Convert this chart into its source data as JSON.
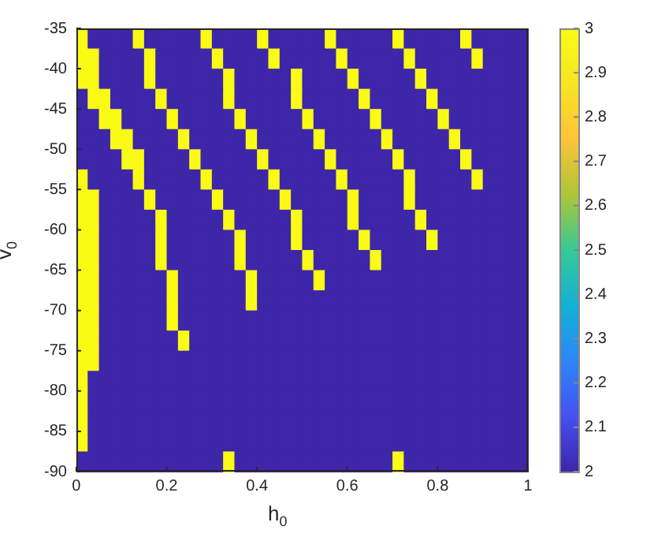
{
  "chart_data": {
    "type": "heatmap",
    "xlabel": "h$_{0}$",
    "ylabel": "v$_{0}$",
    "xlim": [
      0,
      1
    ],
    "xticks": [
      0,
      0.2,
      0.4,
      0.6,
      0.8,
      1
    ],
    "ylim": [
      -90,
      -35
    ],
    "yticks": [
      -90,
      -85,
      -80,
      -75,
      -70,
      -65,
      -60,
      -55,
      -50,
      -45,
      -40,
      -35
    ],
    "clim": [
      2,
      3
    ],
    "cticks": [
      2,
      2.1,
      2.2,
      2.3,
      2.4,
      2.5,
      2.6,
      2.7,
      2.8,
      2.9,
      3
    ],
    "cells": [
      [
        3,
        2,
        2,
        2,
        2,
        3,
        2,
        2,
        2,
        2,
        2,
        3,
        2,
        2,
        2,
        2,
        3,
        2,
        2,
        2,
        2,
        2,
        3,
        2,
        2,
        2,
        2,
        2,
        3,
        2,
        2,
        2,
        2,
        2,
        3,
        2,
        2,
        2,
        2,
        2
      ],
      [
        3,
        3,
        2,
        2,
        2,
        2,
        3,
        2,
        2,
        2,
        2,
        2,
        3,
        2,
        2,
        2,
        2,
        3,
        2,
        2,
        2,
        2,
        2,
        3,
        2,
        2,
        2,
        2,
        2,
        3,
        2,
        2,
        2,
        2,
        2,
        3,
        2,
        2,
        2,
        2
      ],
      [
        3,
        3,
        2,
        2,
        2,
        2,
        3,
        2,
        2,
        2,
        2,
        2,
        2,
        3,
        2,
        2,
        2,
        2,
        2,
        3,
        2,
        2,
        2,
        2,
        3,
        2,
        2,
        2,
        2,
        2,
        3,
        2,
        2,
        2,
        2,
        2,
        2,
        2,
        2,
        2
      ],
      [
        2,
        3,
        3,
        2,
        2,
        2,
        2,
        3,
        2,
        2,
        2,
        2,
        2,
        3,
        2,
        2,
        2,
        2,
        2,
        3,
        2,
        2,
        2,
        2,
        2,
        3,
        2,
        2,
        2,
        2,
        2,
        3,
        2,
        2,
        2,
        2,
        2,
        2,
        2,
        2
      ],
      [
        2,
        2,
        3,
        3,
        2,
        2,
        2,
        2,
        3,
        2,
        2,
        2,
        2,
        2,
        3,
        2,
        2,
        2,
        2,
        2,
        3,
        2,
        2,
        2,
        2,
        2,
        3,
        2,
        2,
        2,
        2,
        2,
        3,
        2,
        2,
        2,
        2,
        2,
        2,
        2
      ],
      [
        2,
        2,
        2,
        3,
        3,
        2,
        2,
        2,
        2,
        3,
        2,
        2,
        2,
        2,
        2,
        3,
        2,
        2,
        2,
        2,
        2,
        3,
        2,
        2,
        2,
        2,
        2,
        3,
        2,
        2,
        2,
        2,
        2,
        3,
        2,
        2,
        2,
        2,
        2,
        2
      ],
      [
        2,
        2,
        2,
        2,
        3,
        3,
        2,
        2,
        2,
        2,
        3,
        2,
        2,
        2,
        2,
        2,
        3,
        2,
        2,
        2,
        2,
        2,
        3,
        2,
        2,
        2,
        2,
        2,
        3,
        2,
        2,
        2,
        2,
        2,
        3,
        2,
        2,
        2,
        2,
        2
      ],
      [
        3,
        2,
        2,
        2,
        2,
        3,
        2,
        2,
        2,
        2,
        2,
        3,
        2,
        2,
        2,
        2,
        2,
        3,
        2,
        2,
        2,
        2,
        2,
        3,
        2,
        2,
        2,
        2,
        2,
        3,
        2,
        2,
        2,
        2,
        2,
        3,
        2,
        2,
        2,
        2
      ],
      [
        3,
        3,
        2,
        2,
        2,
        2,
        3,
        2,
        2,
        2,
        2,
        2,
        3,
        2,
        2,
        2,
        2,
        2,
        3,
        2,
        2,
        2,
        2,
        2,
        3,
        2,
        2,
        2,
        2,
        3,
        2,
        2,
        2,
        2,
        2,
        2,
        2,
        2,
        2,
        2
      ],
      [
        3,
        3,
        2,
        2,
        2,
        2,
        2,
        3,
        2,
        2,
        2,
        2,
        2,
        3,
        2,
        2,
        2,
        2,
        2,
        3,
        2,
        2,
        2,
        2,
        3,
        2,
        2,
        2,
        2,
        2,
        3,
        2,
        2,
        2,
        2,
        2,
        2,
        2,
        2,
        2
      ],
      [
        3,
        3,
        2,
        2,
        2,
        2,
        2,
        3,
        2,
        2,
        2,
        2,
        2,
        2,
        3,
        2,
        2,
        2,
        2,
        3,
        2,
        2,
        2,
        2,
        2,
        3,
        2,
        2,
        2,
        2,
        2,
        3,
        2,
        2,
        2,
        2,
        2,
        2,
        2,
        2
      ],
      [
        3,
        3,
        2,
        2,
        2,
        2,
        2,
        3,
        2,
        2,
        2,
        2,
        2,
        2,
        3,
        2,
        2,
        2,
        2,
        2,
        3,
        2,
        2,
        2,
        2,
        2,
        3,
        2,
        2,
        2,
        2,
        2,
        2,
        2,
        2,
        2,
        2,
        2,
        2,
        2
      ],
      [
        3,
        3,
        2,
        2,
        2,
        2,
        2,
        2,
        3,
        2,
        2,
        2,
        2,
        2,
        2,
        3,
        2,
        2,
        2,
        2,
        2,
        3,
        2,
        2,
        2,
        2,
        2,
        2,
        2,
        2,
        2,
        2,
        2,
        2,
        2,
        2,
        2,
        2,
        2,
        2
      ],
      [
        3,
        3,
        2,
        2,
        2,
        2,
        2,
        2,
        3,
        2,
        2,
        2,
        2,
        2,
        2,
        3,
        2,
        2,
        2,
        2,
        2,
        2,
        2,
        2,
        2,
        2,
        2,
        2,
        2,
        2,
        2,
        2,
        2,
        2,
        2,
        2,
        2,
        2,
        2,
        2
      ],
      [
        3,
        3,
        2,
        2,
        2,
        2,
        2,
        2,
        3,
        2,
        2,
        2,
        2,
        2,
        2,
        2,
        2,
        2,
        2,
        2,
        2,
        2,
        2,
        2,
        2,
        2,
        2,
        2,
        2,
        2,
        2,
        2,
        2,
        2,
        2,
        2,
        2,
        2,
        2,
        2
      ],
      [
        3,
        3,
        2,
        2,
        2,
        2,
        2,
        2,
        2,
        3,
        2,
        2,
        2,
        2,
        2,
        2,
        2,
        2,
        2,
        2,
        2,
        2,
        2,
        2,
        2,
        2,
        2,
        2,
        2,
        2,
        2,
        2,
        2,
        2,
        2,
        2,
        2,
        2,
        2,
        2
      ],
      [
        3,
        3,
        2,
        2,
        2,
        2,
        2,
        2,
        2,
        2,
        2,
        2,
        2,
        2,
        2,
        2,
        2,
        2,
        2,
        2,
        2,
        2,
        2,
        2,
        2,
        2,
        2,
        2,
        2,
        2,
        2,
        2,
        2,
        2,
        2,
        2,
        2,
        2,
        2,
        2
      ],
      [
        3,
        2,
        2,
        2,
        2,
        2,
        2,
        2,
        2,
        2,
        2,
        2,
        2,
        2,
        2,
        2,
        2,
        2,
        2,
        2,
        2,
        2,
        2,
        2,
        2,
        2,
        2,
        2,
        2,
        2,
        2,
        2,
        2,
        2,
        2,
        2,
        2,
        2,
        2,
        2
      ],
      [
        3,
        2,
        2,
        2,
        2,
        2,
        2,
        2,
        2,
        2,
        2,
        2,
        2,
        2,
        2,
        2,
        2,
        2,
        2,
        2,
        2,
        2,
        2,
        2,
        2,
        2,
        2,
        2,
        2,
        2,
        2,
        2,
        2,
        2,
        2,
        2,
        2,
        2,
        2,
        2
      ],
      [
        3,
        2,
        2,
        2,
        2,
        2,
        2,
        2,
        2,
        2,
        2,
        2,
        2,
        2,
        2,
        2,
        2,
        2,
        2,
        2,
        2,
        2,
        2,
        2,
        2,
        2,
        2,
        2,
        2,
        2,
        2,
        2,
        2,
        2,
        2,
        2,
        2,
        2,
        2,
        2
      ],
      [
        3,
        2,
        2,
        2,
        2,
        2,
        2,
        2,
        2,
        2,
        2,
        2,
        2,
        2,
        2,
        2,
        2,
        2,
        2,
        2,
        2,
        2,
        2,
        2,
        2,
        2,
        2,
        2,
        2,
        2,
        2,
        2,
        2,
        2,
        2,
        2,
        2,
        2,
        2,
        2
      ],
      [
        2,
        2,
        2,
        2,
        2,
        2,
        2,
        2,
        2,
        2,
        2,
        2,
        2,
        3,
        2,
        2,
        2,
        2,
        2,
        2,
        2,
        2,
        2,
        2,
        2,
        2,
        2,
        2,
        3,
        2,
        2,
        2,
        2,
        2,
        2,
        2,
        2,
        2,
        2,
        2
      ]
    ]
  }
}
